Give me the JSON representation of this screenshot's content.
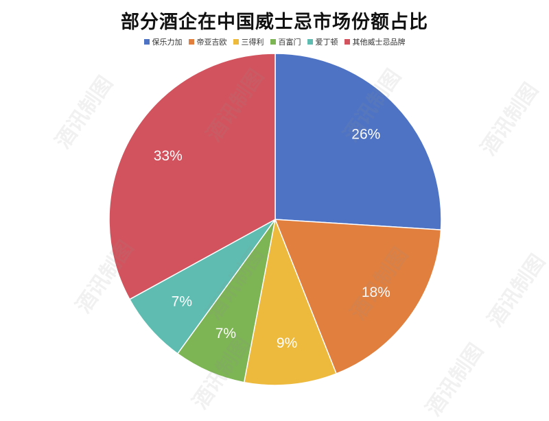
{
  "chart_data": {
    "type": "pie",
    "title": "部分酒企在中国威士忌市场份额占比",
    "legend_placement": "top",
    "categories": [
      "保乐力加",
      "帝亚吉欧",
      "三得利",
      "百富门",
      "爱丁顿",
      "其他威士忌品牌"
    ],
    "values": [
      26,
      18,
      9,
      7,
      7,
      33
    ],
    "labels": [
      "26%",
      "18%",
      "9%",
      "7%",
      "7%",
      "33%"
    ],
    "colors": [
      "#4f73c4",
      "#e07f3e",
      "#edba3d",
      "#7db454",
      "#5ebdb0",
      "#d2535e"
    ],
    "start_angle_deg": 0,
    "direction": "clockwise"
  },
  "watermark": "酒讯制图"
}
